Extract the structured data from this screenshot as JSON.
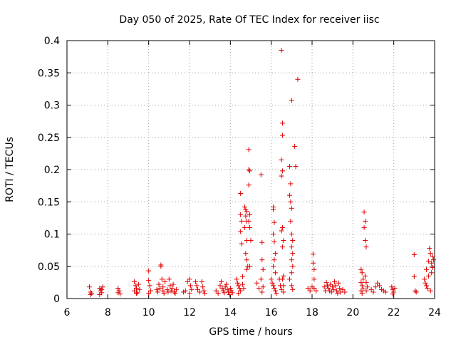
{
  "chart_data": {
    "type": "scatter",
    "title": "Day 050 of 2025, Rate Of TEC Index for receiver iisc",
    "xlabel": "GPS time / hours",
    "ylabel": "ROTI / TECUs",
    "xlim": [
      6,
      24
    ],
    "ylim": [
      0,
      0.4
    ],
    "xticks": [
      "6",
      "8",
      "10",
      "12",
      "14",
      "16",
      "18",
      "20",
      "22",
      "24"
    ],
    "yticks": [
      "0",
      "0.05",
      "0.1",
      "0.15",
      "0.2",
      "0.25",
      "0.3",
      "0.35",
      "0.4"
    ],
    "grid": true,
    "series": [
      {
        "name": "ROTI",
        "color": "#e00000",
        "marker": "plus",
        "points": [
          [
            7.1,
            0.018
          ],
          [
            7.15,
            0.01
          ],
          [
            7.2,
            0.008
          ],
          [
            7.15,
            0.006
          ],
          [
            7.6,
            0.016
          ],
          [
            7.65,
            0.012
          ],
          [
            7.7,
            0.009
          ],
          [
            7.6,
            0.006
          ],
          [
            7.75,
            0.018
          ],
          [
            7.7,
            0.014
          ],
          [
            8.5,
            0.016
          ],
          [
            8.55,
            0.012
          ],
          [
            8.5,
            0.009
          ],
          [
            8.6,
            0.007
          ],
          [
            9.3,
            0.026
          ],
          [
            9.35,
            0.02
          ],
          [
            9.4,
            0.016
          ],
          [
            9.3,
            0.012
          ],
          [
            9.45,
            0.009
          ],
          [
            9.5,
            0.022
          ],
          [
            9.55,
            0.014
          ],
          [
            9.4,
            0.008
          ],
          [
            10.0,
            0.043
          ],
          [
            10.0,
            0.028
          ],
          [
            10.05,
            0.02
          ],
          [
            10.1,
            0.012
          ],
          [
            10.0,
            0.008
          ],
          [
            10.4,
            0.014
          ],
          [
            10.45,
            0.01
          ],
          [
            10.5,
            0.022
          ],
          [
            10.55,
            0.016
          ],
          [
            10.6,
            0.052
          ],
          [
            10.6,
            0.05
          ],
          [
            10.65,
            0.03
          ],
          [
            10.7,
            0.018
          ],
          [
            10.7,
            0.012
          ],
          [
            10.75,
            0.008
          ],
          [
            10.8,
            0.026
          ],
          [
            10.9,
            0.014
          ],
          [
            10.95,
            0.01
          ],
          [
            11.0,
            0.03
          ],
          [
            11.05,
            0.02
          ],
          [
            11.1,
            0.012
          ],
          [
            11.15,
            0.016
          ],
          [
            11.2,
            0.022
          ],
          [
            11.25,
            0.01
          ],
          [
            11.3,
            0.008
          ],
          [
            11.35,
            0.014
          ],
          [
            11.7,
            0.01
          ],
          [
            11.8,
            0.012
          ],
          [
            11.9,
            0.026
          ],
          [
            12.0,
            0.03
          ],
          [
            12.05,
            0.02
          ],
          [
            12.0,
            0.008
          ],
          [
            12.1,
            0.014
          ],
          [
            12.3,
            0.026
          ],
          [
            12.35,
            0.02
          ],
          [
            12.4,
            0.014
          ],
          [
            12.5,
            0.01
          ],
          [
            12.6,
            0.026
          ],
          [
            12.65,
            0.018
          ],
          [
            12.7,
            0.012
          ],
          [
            12.75,
            0.008
          ],
          [
            13.3,
            0.012
          ],
          [
            13.4,
            0.008
          ],
          [
            13.5,
            0.02
          ],
          [
            13.55,
            0.026
          ],
          [
            13.6,
            0.016
          ],
          [
            13.65,
            0.012
          ],
          [
            13.7,
            0.009
          ],
          [
            13.75,
            0.018
          ],
          [
            13.8,
            0.022
          ],
          [
            13.85,
            0.014
          ],
          [
            13.9,
            0.01
          ],
          [
            13.95,
            0.006
          ],
          [
            14.0,
            0.016
          ],
          [
            14.05,
            0.012
          ],
          [
            14.1,
            0.009
          ],
          [
            14.3,
            0.03
          ],
          [
            14.35,
            0.024
          ],
          [
            14.4,
            0.02
          ],
          [
            14.45,
            0.016
          ],
          [
            14.5,
            0.012
          ],
          [
            14.4,
            0.008
          ],
          [
            14.5,
            0.163
          ],
          [
            14.5,
            0.13
          ],
          [
            14.55,
            0.12
          ],
          [
            14.5,
            0.104
          ],
          [
            14.55,
            0.085
          ],
          [
            14.6,
            0.034
          ],
          [
            14.6,
            0.022
          ],
          [
            14.65,
            0.016
          ],
          [
            14.7,
            0.142
          ],
          [
            14.75,
            0.138
          ],
          [
            14.8,
            0.135
          ],
          [
            14.75,
            0.128
          ],
          [
            14.8,
            0.12
          ],
          [
            14.7,
            0.11
          ],
          [
            14.8,
            0.09
          ],
          [
            14.75,
            0.07
          ],
          [
            14.8,
            0.06
          ],
          [
            14.85,
            0.05
          ],
          [
            14.8,
            0.045
          ],
          [
            14.9,
            0.231
          ],
          [
            14.9,
            0.2
          ],
          [
            14.95,
            0.198
          ],
          [
            14.9,
            0.176
          ],
          [
            14.95,
            0.13
          ],
          [
            14.9,
            0.12
          ],
          [
            14.95,
            0.11
          ],
          [
            15.0,
            0.09
          ],
          [
            14.95,
            0.05
          ],
          [
            15.3,
            0.024
          ],
          [
            15.4,
            0.016
          ],
          [
            15.5,
            0.192
          ],
          [
            15.55,
            0.087
          ],
          [
            15.55,
            0.06
          ],
          [
            15.6,
            0.045
          ],
          [
            15.5,
            0.03
          ],
          [
            15.6,
            0.018
          ],
          [
            15.55,
            0.01
          ],
          [
            16.0,
            0.03
          ],
          [
            16.05,
            0.024
          ],
          [
            16.1,
            0.142
          ],
          [
            16.1,
            0.138
          ],
          [
            16.15,
            0.118
          ],
          [
            16.1,
            0.1
          ],
          [
            16.15,
            0.088
          ],
          [
            16.2,
            0.07
          ],
          [
            16.15,
            0.06
          ],
          [
            16.1,
            0.05
          ],
          [
            16.2,
            0.04
          ],
          [
            16.1,
            0.02
          ],
          [
            16.15,
            0.016
          ],
          [
            16.2,
            0.012
          ],
          [
            16.25,
            0.008
          ],
          [
            16.4,
            0.03
          ],
          [
            16.45,
            0.02
          ],
          [
            16.5,
            0.385
          ],
          [
            16.5,
            0.385
          ],
          [
            16.55,
            0.272
          ],
          [
            16.55,
            0.253
          ],
          [
            16.5,
            0.215
          ],
          [
            16.55,
            0.198
          ],
          [
            16.5,
            0.19
          ],
          [
            16.55,
            0.11
          ],
          [
            16.5,
            0.105
          ],
          [
            16.6,
            0.09
          ],
          [
            16.55,
            0.08
          ],
          [
            16.6,
            0.035
          ],
          [
            16.55,
            0.03
          ],
          [
            16.6,
            0.02
          ],
          [
            16.5,
            0.014
          ],
          [
            16.6,
            0.01
          ],
          [
            16.9,
            0.205
          ],
          [
            16.95,
            0.178
          ],
          [
            16.9,
            0.16
          ],
          [
            16.95,
            0.15
          ],
          [
            17.0,
            0.307
          ],
          [
            17.0,
            0.14
          ],
          [
            16.95,
            0.12
          ],
          [
            17.0,
            0.1
          ],
          [
            17.05,
            0.09
          ],
          [
            17.0,
            0.08
          ],
          [
            17.05,
            0.07
          ],
          [
            17.0,
            0.06
          ],
          [
            17.05,
            0.05
          ],
          [
            17.0,
            0.04
          ],
          [
            16.9,
            0.03
          ],
          [
            17.0,
            0.02
          ],
          [
            17.05,
            0.014
          ],
          [
            17.15,
            0.236
          ],
          [
            17.2,
            0.205
          ],
          [
            17.3,
            0.34
          ],
          [
            17.8,
            0.016
          ],
          [
            17.9,
            0.012
          ],
          [
            18.0,
            0.018
          ],
          [
            18.05,
            0.069
          ],
          [
            18.05,
            0.055
          ],
          [
            18.1,
            0.045
          ],
          [
            18.1,
            0.03
          ],
          [
            18.1,
            0.016
          ],
          [
            18.2,
            0.012
          ],
          [
            18.6,
            0.018
          ],
          [
            18.65,
            0.012
          ],
          [
            18.7,
            0.025
          ],
          [
            18.75,
            0.02
          ],
          [
            18.8,
            0.016
          ],
          [
            18.85,
            0.012
          ],
          [
            18.9,
            0.022
          ],
          [
            18.95,
            0.01
          ],
          [
            19.0,
            0.018
          ],
          [
            19.05,
            0.014
          ],
          [
            19.1,
            0.026
          ],
          [
            19.15,
            0.02
          ],
          [
            19.2,
            0.012
          ],
          [
            19.25,
            0.008
          ],
          [
            19.3,
            0.024
          ],
          [
            19.35,
            0.016
          ],
          [
            19.4,
            0.01
          ],
          [
            19.5,
            0.014
          ],
          [
            19.6,
            0.01
          ],
          [
            20.4,
            0.045
          ],
          [
            20.45,
            0.04
          ],
          [
            20.5,
            0.03
          ],
          [
            20.4,
            0.025
          ],
          [
            20.45,
            0.02
          ],
          [
            20.5,
            0.015
          ],
          [
            20.4,
            0.012
          ],
          [
            20.45,
            0.008
          ],
          [
            20.55,
            0.134
          ],
          [
            20.6,
            0.12
          ],
          [
            20.55,
            0.11
          ],
          [
            20.6,
            0.09
          ],
          [
            20.65,
            0.08
          ],
          [
            20.6,
            0.035
          ],
          [
            20.65,
            0.025
          ],
          [
            20.7,
            0.018
          ],
          [
            20.65,
            0.012
          ],
          [
            20.9,
            0.014
          ],
          [
            21.0,
            0.01
          ],
          [
            21.1,
            0.018
          ],
          [
            21.2,
            0.024
          ],
          [
            21.3,
            0.02
          ],
          [
            21.4,
            0.014
          ],
          [
            21.5,
            0.012
          ],
          [
            21.6,
            0.01
          ],
          [
            21.9,
            0.018
          ],
          [
            21.95,
            0.014
          ],
          [
            22.0,
            0.01
          ],
          [
            22.05,
            0.016
          ],
          [
            21.95,
            0.007
          ],
          [
            23.0,
            0.068
          ],
          [
            23.0,
            0.034
          ],
          [
            23.05,
            0.012
          ],
          [
            23.1,
            0.01
          ],
          [
            23.5,
            0.03
          ],
          [
            23.55,
            0.024
          ],
          [
            23.6,
            0.045
          ],
          [
            23.6,
            0.02
          ],
          [
            23.65,
            0.016
          ],
          [
            23.7,
            0.035
          ],
          [
            23.7,
            0.058
          ],
          [
            23.75,
            0.078
          ],
          [
            23.8,
            0.07
          ],
          [
            23.85,
            0.055
          ],
          [
            23.85,
            0.04
          ],
          [
            23.9,
            0.065
          ],
          [
            23.9,
            0.048
          ],
          [
            23.95,
            0.06
          ],
          [
            23.8,
            0.012
          ]
        ]
      }
    ]
  }
}
